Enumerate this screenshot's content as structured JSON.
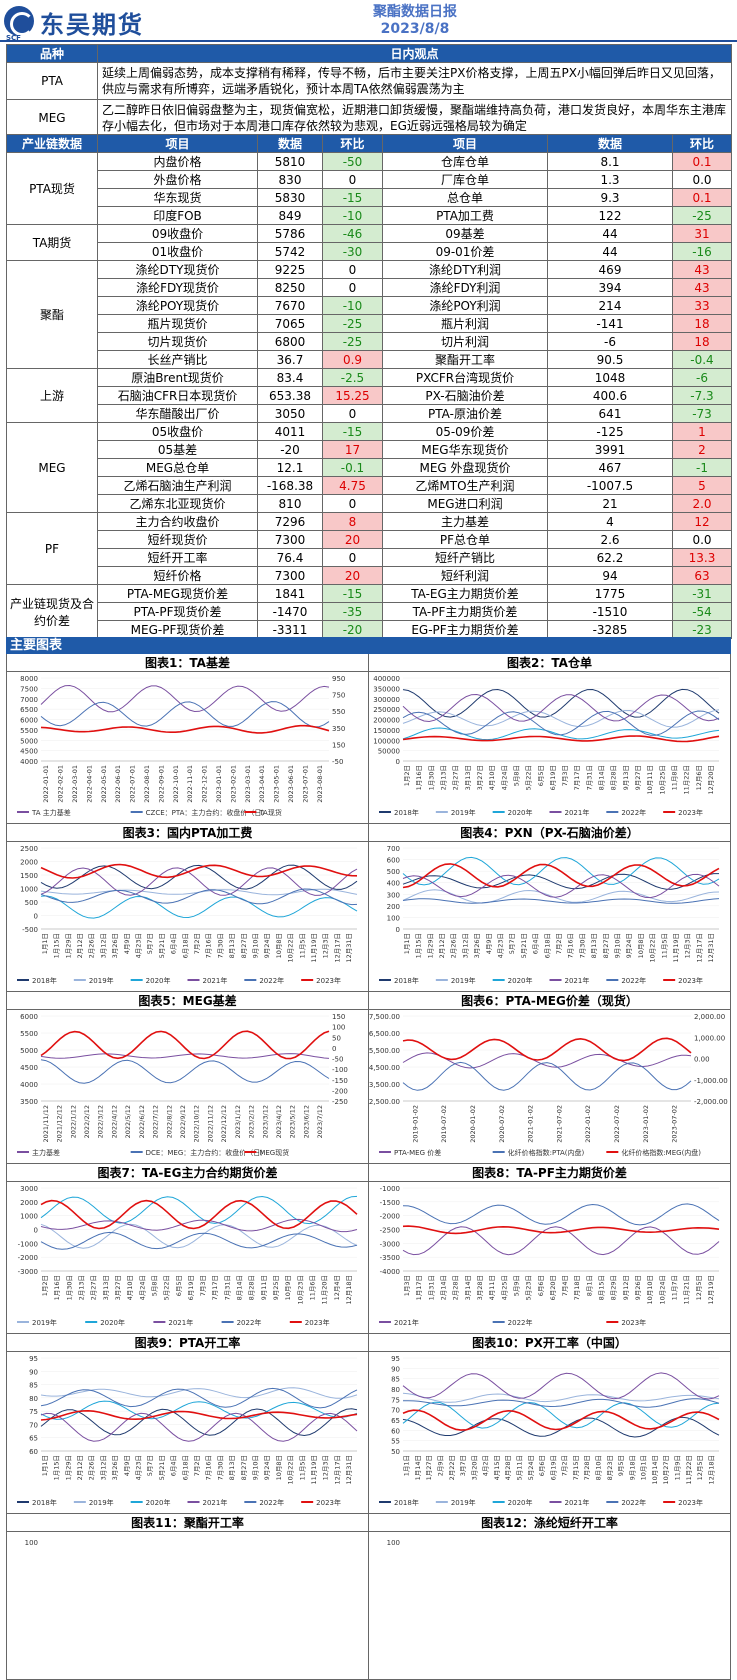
{
  "header": {
    "brand": "东吴期货",
    "brand_sub": "SCF",
    "report_title": "聚酯数据日报",
    "report_date": "2023/8/8"
  },
  "summary": {
    "col_product": "品种",
    "col_view": "日内观点",
    "rows": [
      {
        "product": "PTA",
        "view": "延续上周偏弱态势，成本支撑稍有稀释，传导不畅，后市主要关注PX价格支撑，上周五PX小幅回弹后昨日又见回落，供应与需求有所博弈，远端矛盾锐化，预计本周TA依然偏弱震荡为主"
      },
      {
        "product": "MEG",
        "view": "乙二醇昨日依旧偏弱盘整为主，现货偏宽松，近期港口卸货缓慢，聚酯端维持高负荷，港口发货良好，本周华东主港库存小幅去化，但市场对于本周港口库存依然较为悲观，EG近弱远强格局较为确定"
      }
    ]
  },
  "data_table": {
    "headers": [
      "产业链数据",
      "项目",
      "数据",
      "环比",
      "项目",
      "数据",
      "环比"
    ],
    "groups": [
      {
        "name": "PTA现货",
        "rows": [
          [
            "内盘价格",
            "5810",
            "-50",
            "仓库仓单",
            "8.1",
            "0.1"
          ],
          [
            "外盘价格",
            "830",
            "0",
            "厂库仓单",
            "1.3",
            "0.0"
          ],
          [
            "华东现货",
            "5830",
            "-15",
            "总仓单",
            "9.3",
            "0.1"
          ],
          [
            "印度FOB",
            "849",
            "-10",
            "PTA加工费",
            "122",
            "-25"
          ]
        ]
      },
      {
        "name": "TA期货",
        "rows": [
          [
            "09收盘价",
            "5786",
            "-46",
            "09基差",
            "44",
            "31"
          ],
          [
            "01收盘价",
            "5742",
            "-30",
            "09-01价差",
            "44",
            "-16"
          ]
        ]
      },
      {
        "name": "聚酯",
        "rows": [
          [
            "涤纶DTY现货价",
            "9225",
            "0",
            "涤纶DTY利润",
            "469",
            "43"
          ],
          [
            "涤纶FDY现货价",
            "8250",
            "0",
            "涤纶FDY利润",
            "394",
            "43"
          ],
          [
            "涤纶POY现货价",
            "7670",
            "-10",
            "涤纶POY利润",
            "214",
            "33"
          ],
          [
            "瓶片现货价",
            "7065",
            "-25",
            "瓶片利润",
            "-141",
            "18"
          ],
          [
            "切片现货价",
            "6800",
            "-25",
            "切片利润",
            "-6",
            "18"
          ],
          [
            "长丝产销比",
            "36.7",
            "0.9",
            "聚酯开工率",
            "90.5",
            "-0.4"
          ]
        ]
      },
      {
        "name": "上游",
        "rows": [
          [
            "原油Brent现货价",
            "83.4",
            "-2.5",
            "PXCFR台湾现货价",
            "1048",
            "-6"
          ],
          [
            "石脑油CFR日本现货价",
            "653.38",
            "15.25",
            "PX-石脑油价差",
            "400.6",
            "-7.3"
          ],
          [
            "华东醋酸出厂价",
            "3050",
            "0",
            "PTA-原油价差",
            "641",
            "-73"
          ]
        ]
      },
      {
        "name": "MEG",
        "rows": [
          [
            "05收盘价",
            "4011",
            "-15",
            "05-09价差",
            "-125",
            "1"
          ],
          [
            "05基差",
            "-20",
            "17",
            "MEG华东现货价",
            "3991",
            "2"
          ],
          [
            "MEG总仓单",
            "12.1",
            "-0.1",
            "MEG 外盘现货价",
            "467",
            "-1"
          ],
          [
            "乙烯石脑油生产利润",
            "-168.38",
            "4.75",
            "乙烯MTO生产利润",
            "-1007.5",
            "5"
          ],
          [
            "乙烯东北亚现货价",
            "810",
            "0",
            "MEG进口利润",
            "21",
            "2.0"
          ]
        ]
      },
      {
        "name": "PF",
        "rows": [
          [
            "主力合约收盘价",
            "7296",
            "8",
            "主力基差",
            "4",
            "12"
          ],
          [
            "短纤现货价",
            "7300",
            "20",
            "PF总仓单",
            "2.6",
            "0.0"
          ],
          [
            "短纤开工率",
            "76.4",
            "0",
            "短纤产销比",
            "62.2",
            "13.3"
          ],
          [
            "短纤价格",
            "7300",
            "20",
            "短纤利润",
            "94",
            "63"
          ]
        ]
      },
      {
        "name": "产业链现货及合约价差",
        "rows": [
          [
            "PTA-MEG现货价差",
            "1841",
            "-15",
            "TA-EG主力期货价差",
            "1775",
            "-31"
          ],
          [
            "PTA-PF现货价差",
            "-1470",
            "-35",
            "TA-PF主力期货价差",
            "-1510",
            "-54"
          ],
          [
            "MEG-PF现货价差",
            "-3311",
            "-20",
            "EG-PF主力期货价差",
            "-3285",
            "-23"
          ]
        ]
      }
    ]
  },
  "section_title": "主要图表",
  "charts": [
    {
      "title": "图表1：TA基差",
      "legend": [
        "TA 主力基差",
        "CZCE：PTA：主力合约：收盘价（日）",
        "TA现货"
      ],
      "yleft": [
        "8000",
        "7500",
        "7000",
        "6500",
        "6000",
        "5500",
        "5000",
        "4500",
        "4000"
      ],
      "yright": [
        "950",
        "750",
        "550",
        "350",
        "150",
        "-50"
      ],
      "xticks": [
        "2022-01-01",
        "2022-02-01",
        "2022-03-01",
        "2022-04-01",
        "2022-05-01",
        "2022-06-01",
        "2022-07-01",
        "2022-08-01",
        "2022-09-01",
        "2022-10-01",
        "2022-11-01",
        "2022-12-01",
        "2023-01-01",
        "2023-02-01",
        "2023-03-01",
        "2023-04-01",
        "2023-05-01",
        "2023-06-01",
        "2023-07-01",
        "2023-08-01"
      ]
    },
    {
      "title": "图表2：TA仓单",
      "legend": [
        "2018年",
        "2019年",
        "2020年",
        "2021年",
        "2022年",
        "2023年"
      ],
      "yleft": [
        "400000",
        "350000",
        "300000",
        "250000",
        "200000",
        "150000",
        "100000",
        "50000",
        "0"
      ],
      "xticks": [
        "1月2日",
        "1月16日",
        "1月30日",
        "2月13日",
        "2月27日",
        "3月13日",
        "3月27日",
        "4月10日",
        "4月24日",
        "5月8日",
        "5月22日",
        "6月5日",
        "6月19日",
        "7月3日",
        "7月17日",
        "7月31日",
        "8月14日",
        "8月28日",
        "9月13日",
        "9月27日",
        "10月11日",
        "10月25日",
        "11月8日",
        "11月22日",
        "12月6日",
        "12月20日"
      ]
    },
    {
      "title": "图表3：国内PTA加工费",
      "legend": [
        "2018年",
        "2019年",
        "2020年",
        "2021年",
        "2022年",
        "2023年"
      ],
      "yleft": [
        "2500",
        "2000",
        "1500",
        "1000",
        "500",
        "0",
        "-500"
      ],
      "xticks": [
        "1月1日",
        "1月15日",
        "1月29日",
        "2月12日",
        "2月26日",
        "3月12日",
        "3月26日",
        "4月9日",
        "4月23日",
        "5月7日",
        "5月21日",
        "6月4日",
        "6月18日",
        "7月2日",
        "7月16日",
        "7月30日",
        "8月13日",
        "8月27日",
        "9月10日",
        "9月24日",
        "10月8日",
        "10月22日",
        "11月5日",
        "11月19日",
        "12月3日",
        "12月17日",
        "12月31日"
      ]
    },
    {
      "title": "图表4：PXN（PX-石脑油价差）",
      "legend": [
        "2018年",
        "2019年",
        "2020年",
        "2021年",
        "2022年",
        "2023年"
      ],
      "yleft": [
        "700",
        "600",
        "500",
        "400",
        "300",
        "200",
        "100",
        "0"
      ],
      "xticks": [
        "1月1日",
        "1月15日",
        "1月29日",
        "2月12日",
        "2月26日",
        "3月12日",
        "3月26日",
        "4月9日",
        "4月23日",
        "5月7日",
        "5月21日",
        "6月4日",
        "6月18日",
        "7月2日",
        "7月16日",
        "7月30日",
        "8月13日",
        "8月27日",
        "9月10日",
        "9月24日",
        "10月8日",
        "10月22日",
        "11月5日",
        "11月19日",
        "12月3日",
        "12月17日",
        "12月31日"
      ]
    },
    {
      "title": "图表5：MEG基差",
      "legend": [
        "主力基差",
        "DCE：MEG：主力合约：收盘价（日）",
        "MEG现货"
      ],
      "yleft": [
        "6000",
        "5500",
        "5000",
        "4500",
        "4000",
        "3500"
      ],
      "yright": [
        "150",
        "100",
        "50",
        "0",
        "-50",
        "-100",
        "-150",
        "-200",
        "-250"
      ],
      "xticks": [
        "2021/11/12",
        "2021/12/12",
        "2022/1/12",
        "2022/2/12",
        "2022/3/12",
        "2022/4/12",
        "2022/5/12",
        "2022/6/12",
        "2022/7/12",
        "2022/8/12",
        "2022/9/12",
        "2022/10/12",
        "2022/11/12",
        "2022/12/12",
        "2023/1/12",
        "2023/2/12",
        "2023/3/12",
        "2023/4/12",
        "2023/5/12",
        "2023/6/12",
        "2023/7/12"
      ]
    },
    {
      "title": "图表6：PTA-MEG价差（现货）",
      "legend": [
        "PTA-MEG 价差",
        "化纤价格指数:PTA(内盘)",
        "化纤价格指数:MEG(内盘)"
      ],
      "yleft": [
        "7,500.00",
        "6,500.00",
        "5,500.00",
        "4,500.00",
        "3,500.00",
        "2,500.00"
      ],
      "yright": [
        "2,000.00",
        "1,000.00",
        "0.00",
        "-1,000.00",
        "-2,000.00"
      ],
      "xticks": [
        "2019-01-02",
        "2019-07-02",
        "2020-01-02",
        "2020-07-02",
        "2021-01-02",
        "2021-07-02",
        "2022-01-02",
        "2022-07-02",
        "2023-01-02",
        "2023-07-02"
      ]
    },
    {
      "title": "图表7：TA-EG主力合约期货价差",
      "legend": [
        "2019年",
        "2020年",
        "2021年",
        "2022年",
        "2023年"
      ],
      "yleft": [
        "3000",
        "2000",
        "1000",
        "0",
        "-1000",
        "-2000",
        "-3000"
      ],
      "xticks": [
        "1月2日",
        "1月16日",
        "1月30日",
        "2月13日",
        "2月27日",
        "3月13日",
        "3月27日",
        "4月10日",
        "4月24日",
        "5月8日",
        "5月22日",
        "6月5日",
        "6月19日",
        "7月3日",
        "7月17日",
        "7月31日",
        "8月14日",
        "8月28日",
        "9月11日",
        "9月25日",
        "10月9日",
        "10月23日",
        "11月6日",
        "11月20日",
        "12月4日",
        "12月18日"
      ]
    },
    {
      "title": "图表8：TA-PF主力期货价差",
      "legend": [
        "2021年",
        "2022年",
        "2023年"
      ],
      "yleft": [
        "-1000",
        "-1500",
        "-2000",
        "-2500",
        "-3000",
        "-3500",
        "-4000"
      ],
      "xticks": [
        "1月3日",
        "1月17日",
        "1月31日",
        "2月14日",
        "2月28日",
        "3月14日",
        "3月28日",
        "4月11日",
        "4月25日",
        "5月9日",
        "5月23日",
        "6月6日",
        "6月20日",
        "7月4日",
        "7月18日",
        "8月1日",
        "8月15日",
        "8月29日",
        "9月12日",
        "9月26日",
        "10月10日",
        "10月24日",
        "11月7日",
        "11月21日",
        "12月5日",
        "12月19日"
      ]
    },
    {
      "title": "图表9：PTA开工率",
      "legend": [
        "2018年",
        "2019年",
        "2020年",
        "2021年",
        "2022年",
        "2023年"
      ],
      "yleft": [
        "95",
        "90",
        "85",
        "80",
        "75",
        "70",
        "65",
        "60"
      ],
      "xticks": [
        "1月1日",
        "1月15日",
        "1月29日",
        "2月12日",
        "2月26日",
        "3月12日",
        "3月26日",
        "4月9日",
        "4月23日",
        "5月7日",
        "5月21日",
        "6月4日",
        "6月18日",
        "7月2日",
        "7月16日",
        "7月30日",
        "8月13日",
        "8月27日",
        "9月10日",
        "9月24日",
        "10月8日",
        "10月22日",
        "11月5日",
        "11月19日",
        "12月3日",
        "12月17日",
        "12月31日"
      ]
    },
    {
      "title": "图表10：PX开工率（中国）",
      "legend": [
        "2018年",
        "2019年",
        "2020年",
        "2021年",
        "2022年",
        "2023年"
      ],
      "yleft": [
        "95",
        "90",
        "85",
        "80",
        "75",
        "70",
        "65",
        "60",
        "55",
        "50"
      ],
      "xticks": [
        "1月1日",
        "1月14日",
        "1月27日",
        "2月9日",
        "2月22日",
        "3月7日",
        "3月20日",
        "4月2日",
        "4月15日",
        "4月28日",
        "5月11日",
        "5月24日",
        "6月6日",
        "6月19日",
        "7月2日",
        "7月15日",
        "7月28日",
        "8月10日",
        "8月23日",
        "9月5日",
        "9月18日",
        "10月1日",
        "10月14日",
        "10月27日",
        "11月9日",
        "11月22日",
        "12月5日",
        "12月18日"
      ]
    },
    {
      "title": "图表11：聚酯开工率",
      "legend": [],
      "yleft": [
        "100"
      ],
      "xticks": []
    },
    {
      "title": "图表12：涤纶短纤开工率",
      "legend": [],
      "yleft": [
        "100"
      ],
      "xticks": []
    }
  ],
  "colors": {
    "accent": "#1f5aa8",
    "up": "#d00000",
    "down": "#1a8a1a"
  }
}
